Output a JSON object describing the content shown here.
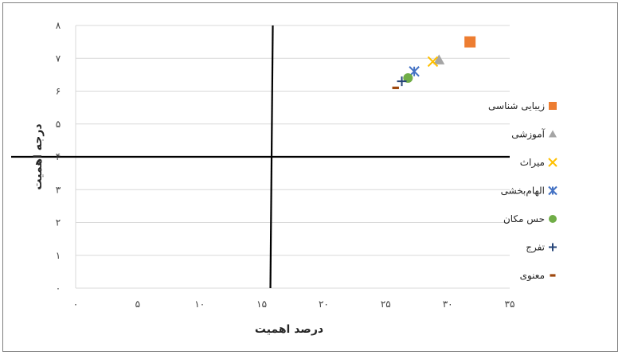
{
  "chart_data": {
    "type": "scatter",
    "xlabel": "درصد اهمیت",
    "ylabel": "درجه اهمیت",
    "xlim": [
      0,
      35
    ],
    "ylim": [
      0,
      8
    ],
    "x_ticks": [
      0,
      5,
      10,
      15,
      20,
      25,
      30,
      35
    ],
    "y_ticks": [
      0,
      1,
      2,
      3,
      4,
      5,
      6,
      7,
      8
    ],
    "x_tick_labels": [
      "۰",
      "۵",
      "۱۰",
      "۱۵",
      "۲۰",
      "۲۵",
      "۳۰",
      "۳۵"
    ],
    "y_tick_labels": [
      "۰",
      "۱",
      "۲",
      "۳",
      "۴",
      "۵",
      "۶",
      "۷",
      "۸"
    ],
    "grid": "horizontal",
    "legend_position": "right",
    "quadrant_lines": {
      "x": 15.8,
      "y": 4
    },
    "series": [
      {
        "name": "زیبایی شناسی",
        "marker": "square",
        "color": "#ED7D31",
        "x": 31.8,
        "y": 7.5
      },
      {
        "name": "آموزشی",
        "marker": "triangle",
        "color": "#A5A5A5",
        "x": 29.3,
        "y": 6.95
      },
      {
        "name": "میراث",
        "marker": "x",
        "color": "#FFC000",
        "x": 28.8,
        "y": 6.9
      },
      {
        "name": "الهام‌بخشی",
        "marker": "asterisk",
        "color": "#4472C4",
        "x": 27.3,
        "y": 6.6
      },
      {
        "name": "حس مکان",
        "marker": "circle",
        "color": "#70AD47",
        "x": 26.8,
        "y": 6.4
      },
      {
        "name": "تفرج",
        "marker": "plus",
        "color": "#264478",
        "x": 26.3,
        "y": 6.3
      },
      {
        "name": "معنوی",
        "marker": "dash",
        "color": "#9E480E",
        "x": 25.8,
        "y": 6.1
      }
    ]
  }
}
